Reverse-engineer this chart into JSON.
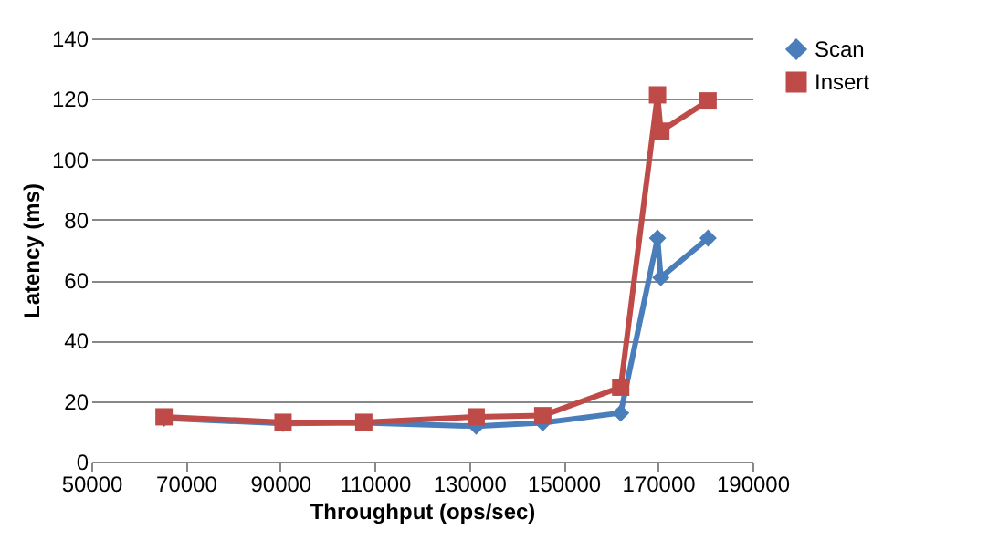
{
  "chart_data": {
    "type": "line",
    "xlabel": "Throughput (ops/sec)",
    "ylabel": "Latency (ms)",
    "x": [
      65400,
      90600,
      107700,
      131500,
      145600,
      162100,
      169900,
      170600,
      180600
    ],
    "series": [
      {
        "name": "Scan",
        "color": "#4a7ebb",
        "marker": "diamond",
        "values": [
          14.3,
          12.6,
          12.8,
          11.7,
          12.8,
          16.1,
          73.9,
          60.9,
          73.9
        ]
      },
      {
        "name": "Insert",
        "color": "#be4b48",
        "marker": "square",
        "values": [
          14.8,
          13,
          13,
          14.8,
          15.2,
          24.6,
          121.3,
          109.3,
          119.3
        ]
      }
    ],
    "xlim": [
      50000,
      190000
    ],
    "xticks": [
      50000,
      70000,
      90000,
      110000,
      130000,
      150000,
      170000,
      190000
    ],
    "ylim": [
      0,
      140
    ],
    "yticks": [
      0,
      20,
      40,
      60,
      80,
      100,
      120,
      140
    ],
    "grid": "y",
    "legend": "right",
    "line_style": "solid"
  }
}
